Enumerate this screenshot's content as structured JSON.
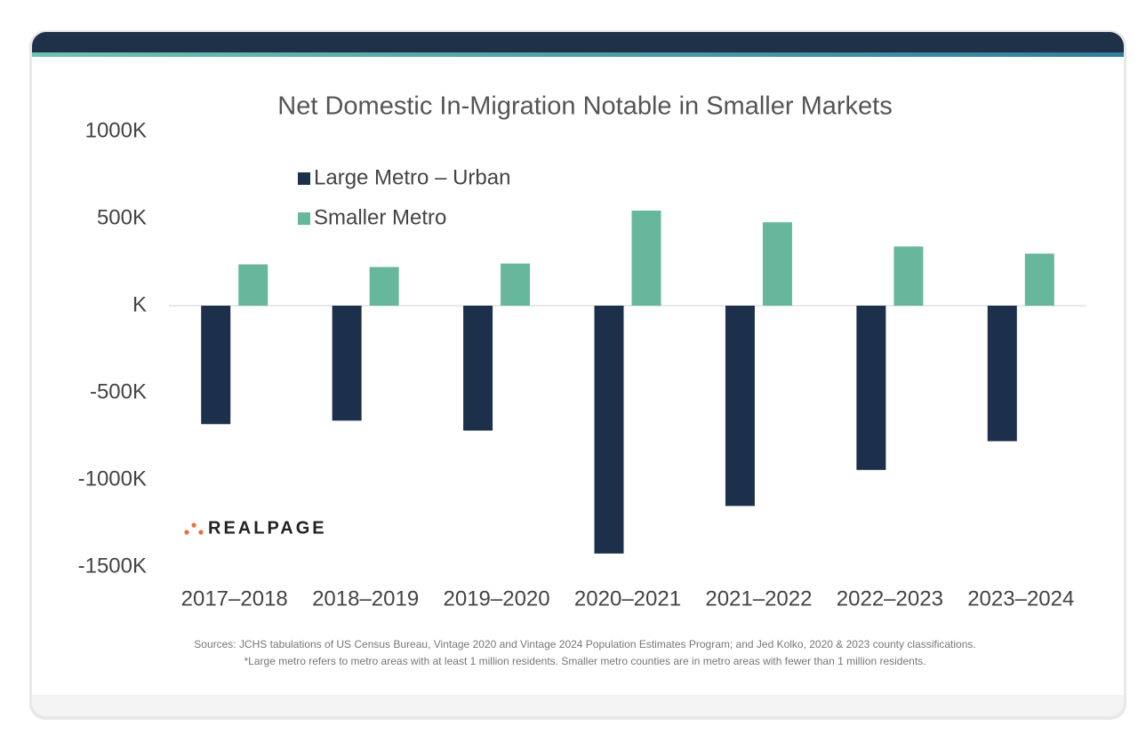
{
  "chart_data": {
    "type": "bar",
    "title": "Net Domestic In-Migration Notable in Smaller Markets",
    "categories": [
      "2017–2018",
      "2018–2019",
      "2019–2020",
      "2020–2021",
      "2021–2022",
      "2022–2023",
      "2023–2024"
    ],
    "series": [
      {
        "name": "Large Metro – Urban",
        "color": "#1c2f4b",
        "values": [
          -680,
          -660,
          -717,
          -1423,
          -1150,
          -943,
          -778
        ]
      },
      {
        "name": "Smaller Metro",
        "color": "#67b79c",
        "values": [
          237,
          222,
          242,
          546,
          479,
          340,
          299
        ]
      }
    ],
    "ylim": [
      -1500,
      1000
    ],
    "yticks": [
      {
        "value": -1500,
        "label": "-1500K"
      },
      {
        "value": -1000,
        "label": "-1000K"
      },
      {
        "value": -500,
        "label": "-500K"
      },
      {
        "value": 0,
        "label": "K"
      },
      {
        "value": 500,
        "label": "500K"
      },
      {
        "value": 1000,
        "label": "1000K"
      }
    ],
    "grid": false,
    "legend": "top-left",
    "logo": "REALPAGE",
    "sources": [
      "Sources: JCHS tabulations of US Census Bureau, Vintage 2020 and Vintage 2024 Population Estimates Program; and Jed Kolko, 2020 & 2023 county classifications.",
      "*Large metro refers to metro areas with at least 1 million residents. Smaller metro counties are in metro areas with fewer than 1 million residents."
    ]
  }
}
